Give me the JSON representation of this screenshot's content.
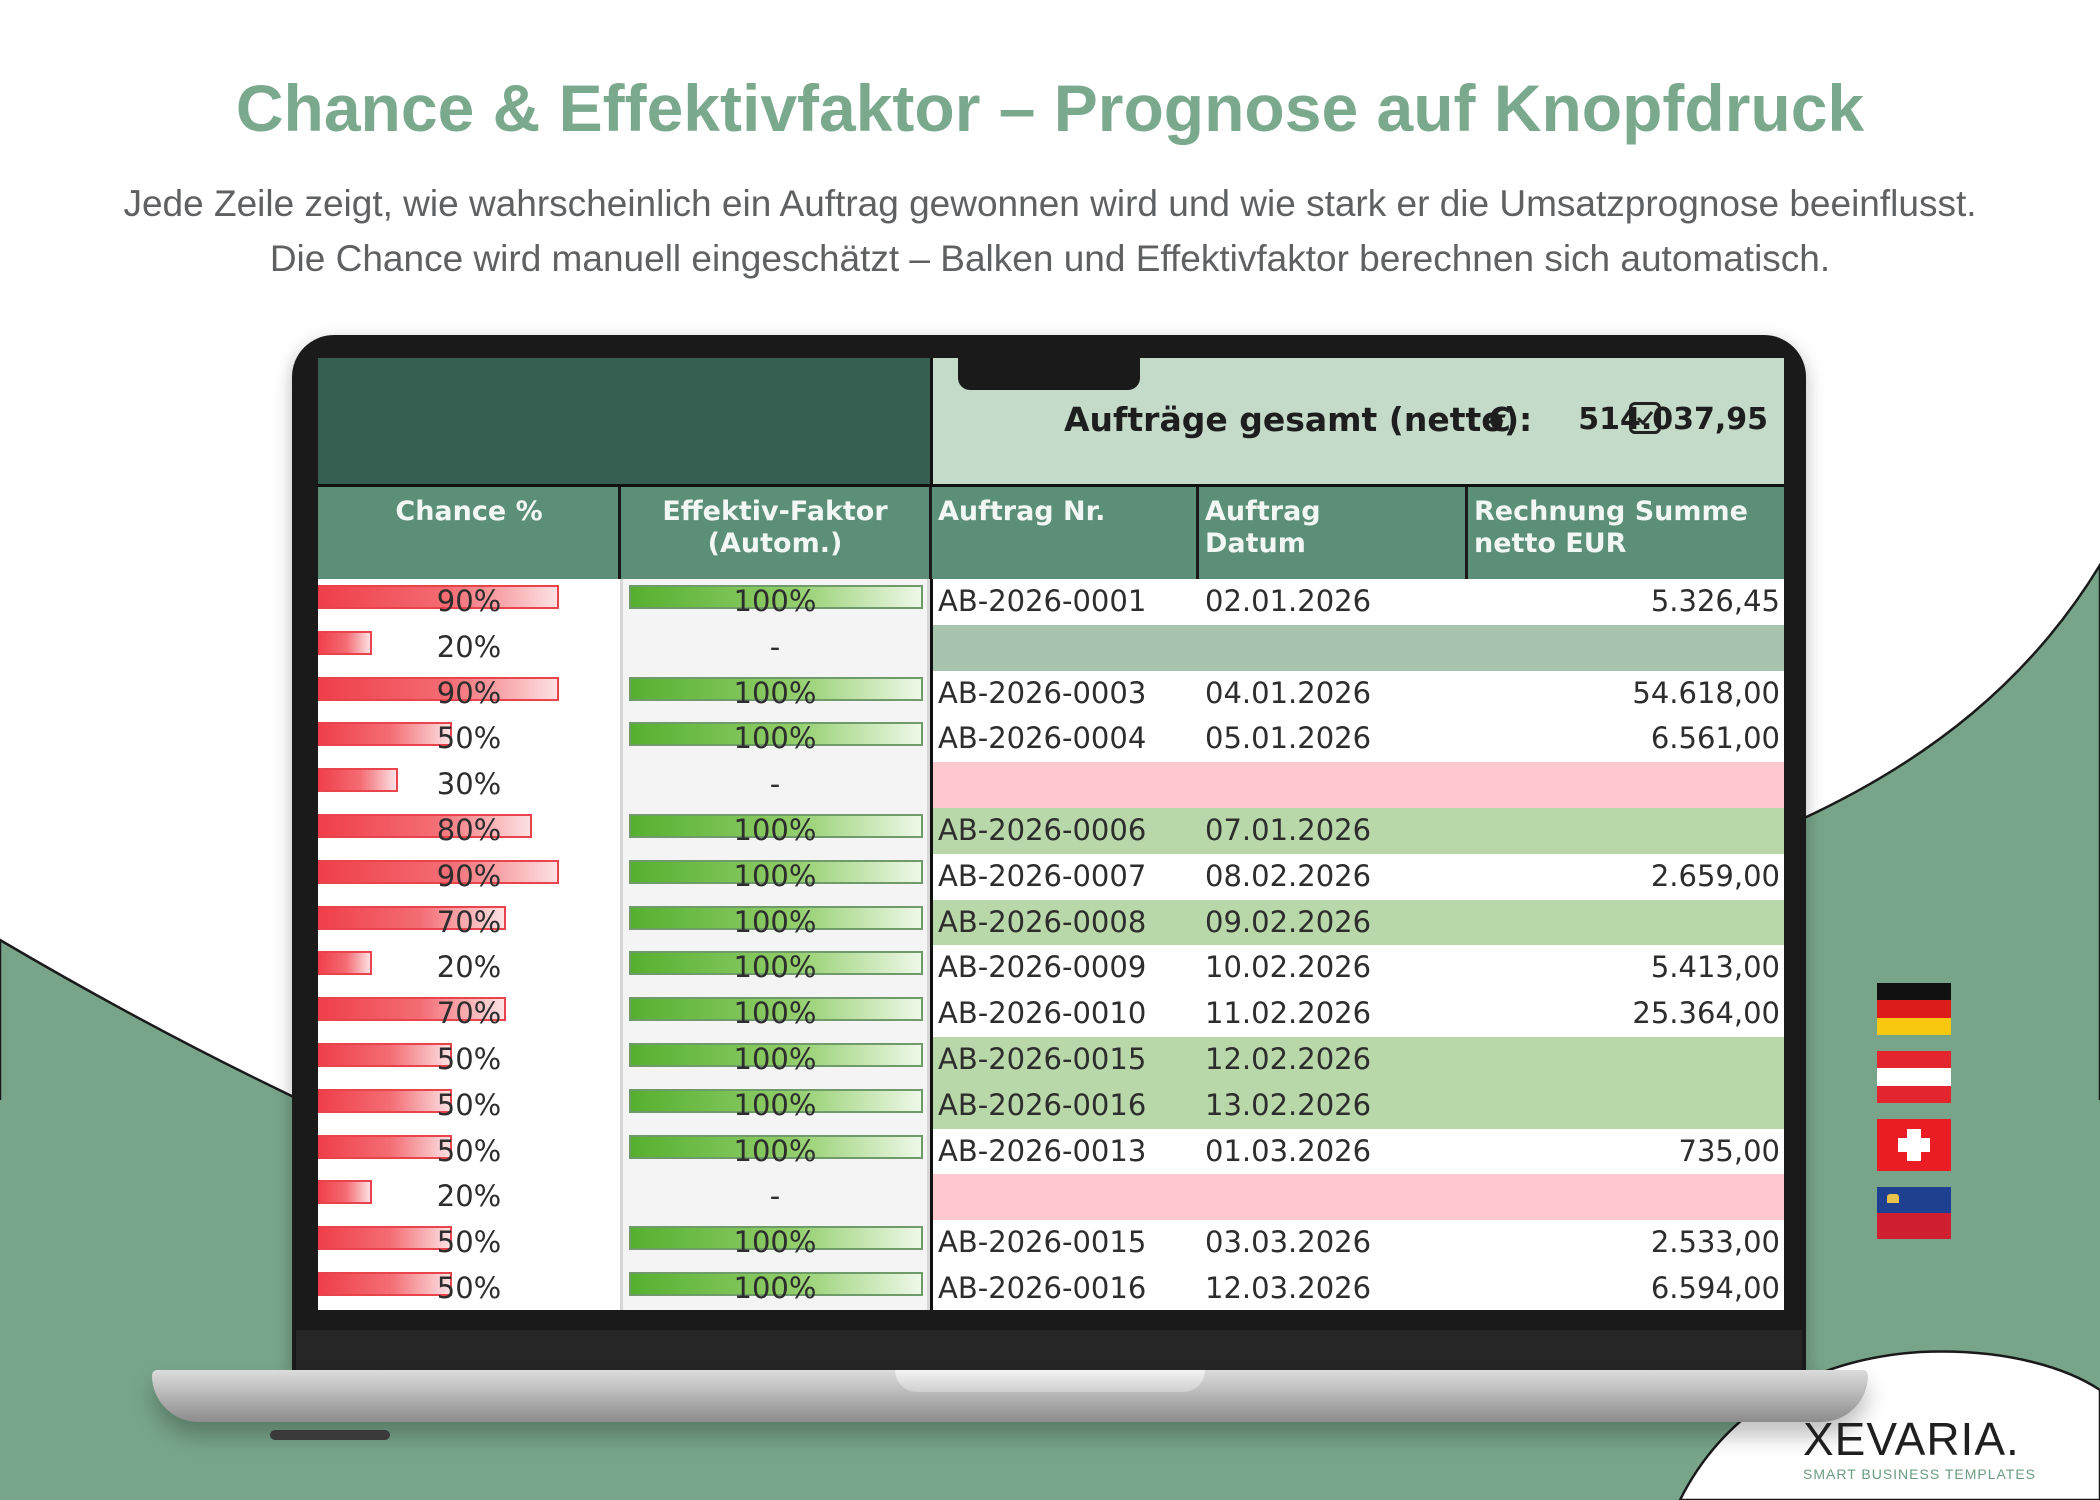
{
  "page": {
    "title": "Chance & Effektivfaktor – Prognose auf Knopfdruck",
    "subtitle_line1": "Jede Zeile zeigt, wie wahrscheinlich ein Auftrag gewonnen wird und wie stark er die Umsatzprognose beeinflusst.",
    "subtitle_line2": "Die Chance wird manuell eingeschätzt – Balken und Effektivfaktor berechnen sich automatisch."
  },
  "sheet": {
    "total_label": "Aufträge gesamt (netto):",
    "currency": "€",
    "total_value": "514.037,95",
    "columns": {
      "chance": "Chance %",
      "faktor_line1": "Effektiv-Faktor",
      "faktor_line2": "(Autom.)",
      "nr": "Auftrag Nr.",
      "date_line1": "Auftrag",
      "date_line2": "Datum",
      "sum_line1": "Rechnung Summe",
      "sum_line2": "netto EUR"
    },
    "rows": [
      {
        "chance": "90%",
        "chance_value": 0.9,
        "faktor": "100%",
        "faktor_value": 1.0,
        "nr": "AB-2026-0001",
        "date": "02.01.2026",
        "sum": "5.326,45",
        "status": "white"
      },
      {
        "chance": "20%",
        "chance_value": 0.2,
        "faktor": "-",
        "faktor_value": 0,
        "nr": "",
        "date": "",
        "sum": "",
        "status": "gray-green"
      },
      {
        "chance": "90%",
        "chance_value": 0.9,
        "faktor": "100%",
        "faktor_value": 1.0,
        "nr": "AB-2026-0003",
        "date": "04.01.2026",
        "sum": "54.618,00",
        "status": "white"
      },
      {
        "chance": "50%",
        "chance_value": 0.5,
        "faktor": "100%",
        "faktor_value": 1.0,
        "nr": "AB-2026-0004",
        "date": "05.01.2026",
        "sum": "6.561,00",
        "status": "white"
      },
      {
        "chance": "30%",
        "chance_value": 0.3,
        "faktor": "-",
        "faktor_value": 0,
        "nr": "",
        "date": "",
        "sum": "",
        "status": "pink"
      },
      {
        "chance": "80%",
        "chance_value": 0.8,
        "faktor": "100%",
        "faktor_value": 1.0,
        "nr": "AB-2026-0006",
        "date": "07.01.2026",
        "sum": "",
        "status": "green"
      },
      {
        "chance": "90%",
        "chance_value": 0.9,
        "faktor": "100%",
        "faktor_value": 1.0,
        "nr": "AB-2026-0007",
        "date": "08.02.2026",
        "sum": "2.659,00",
        "status": "white"
      },
      {
        "chance": "70%",
        "chance_value": 0.7,
        "faktor": "100%",
        "faktor_value": 1.0,
        "nr": "AB-2026-0008",
        "date": "09.02.2026",
        "sum": "",
        "status": "green"
      },
      {
        "chance": "20%",
        "chance_value": 0.2,
        "faktor": "100%",
        "faktor_value": 1.0,
        "nr": "AB-2026-0009",
        "date": "10.02.2026",
        "sum": "5.413,00",
        "status": "white"
      },
      {
        "chance": "70%",
        "chance_value": 0.7,
        "faktor": "100%",
        "faktor_value": 1.0,
        "nr": "AB-2026-0010",
        "date": "11.02.2026",
        "sum": "25.364,00",
        "status": "white"
      },
      {
        "chance": "50%",
        "chance_value": 0.5,
        "faktor": "100%",
        "faktor_value": 1.0,
        "nr": "AB-2026-0015",
        "date": "12.02.2026",
        "sum": "",
        "status": "green"
      },
      {
        "chance": "50%",
        "chance_value": 0.5,
        "faktor": "100%",
        "faktor_value": 1.0,
        "nr": "AB-2026-0016",
        "date": "13.02.2026",
        "sum": "",
        "status": "green"
      },
      {
        "chance": "50%",
        "chance_value": 0.5,
        "faktor": "100%",
        "faktor_value": 1.0,
        "nr": "AB-2026-0013",
        "date": "01.03.2026",
        "sum": "735,00",
        "status": "white"
      },
      {
        "chance": "20%",
        "chance_value": 0.2,
        "faktor": "-",
        "faktor_value": 0,
        "nr": "",
        "date": "",
        "sum": "",
        "status": "pink"
      },
      {
        "chance": "50%",
        "chance_value": 0.5,
        "faktor": "100%",
        "faktor_value": 1.0,
        "nr": "AB-2026-0015",
        "date": "03.03.2026",
        "sum": "2.533,00",
        "status": "white"
      },
      {
        "chance": "50%",
        "chance_value": 0.5,
        "faktor": "100%",
        "faktor_value": 1.0,
        "nr": "AB-2026-0016",
        "date": "12.03.2026",
        "sum": "6.594,00",
        "status": "white"
      }
    ]
  },
  "flags": [
    "germany-flag-icon",
    "austria-flag-icon",
    "switzerland-flag-icon",
    "liechtenstein-flag-icon"
  ],
  "brand": {
    "name": "XEVARIA.",
    "tagline": "SMART BUSINESS TEMPLATES"
  },
  "colors": {
    "accent": "#7ba98e",
    "background_shape": "#78a58a",
    "header_dark": "#365f52",
    "column_header": "#5b8f77",
    "row_green": "#b9d8a9",
    "row_gray_green": "#a9c4ae",
    "row_pink": "#ffc7ce",
    "chance_bar": "#ef3e49",
    "faktor_bar": "#56b02f"
  }
}
